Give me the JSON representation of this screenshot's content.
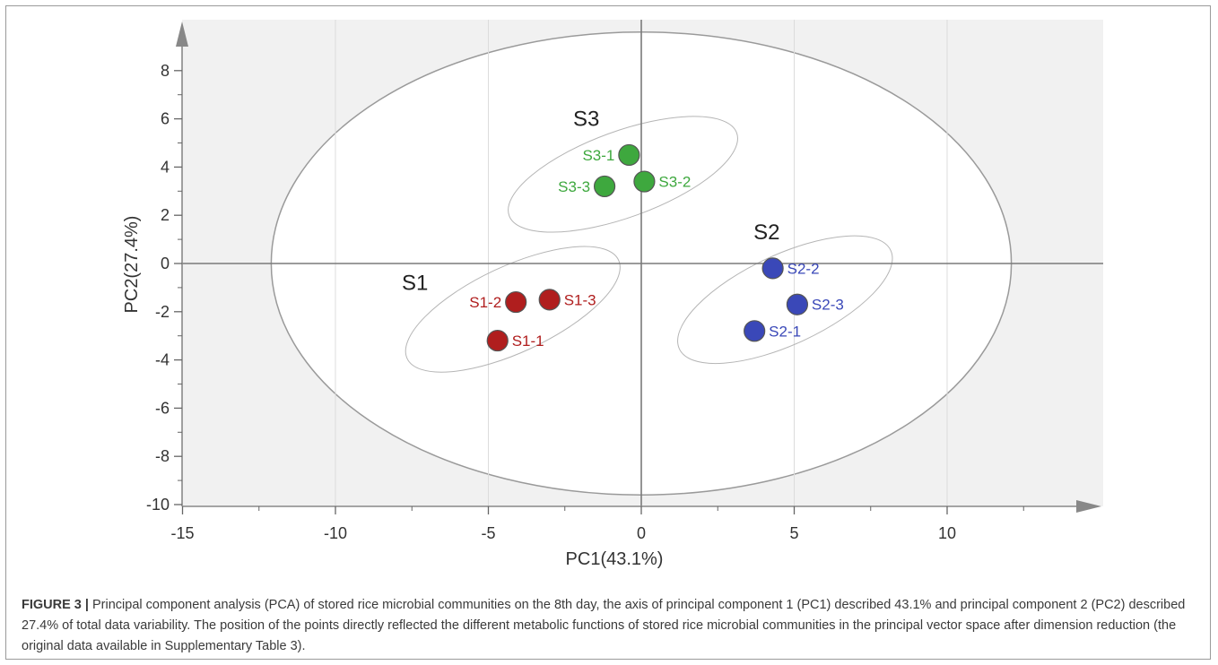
{
  "chart_data": {
    "type": "scatter",
    "title": "",
    "xlabel": "PC1(43.1%)",
    "ylabel": "PC2(27.4%)",
    "xlim": [
      -15,
      15
    ],
    "ylim": [
      -10,
      9.5
    ],
    "xticks": [
      -15,
      -10,
      -5,
      0,
      5,
      10
    ],
    "yticks": [
      -10,
      -8,
      -6,
      -4,
      -2,
      0,
      2,
      4,
      6,
      8
    ],
    "grid": true,
    "series": [
      {
        "name": "S1",
        "color": "#b01e1e",
        "points": [
          {
            "label": "S1-1",
            "x": -4.7,
            "y": -3.2
          },
          {
            "label": "S1-2",
            "x": -4.1,
            "y": -1.6
          },
          {
            "label": "S1-3",
            "x": -3.0,
            "y": -1.5
          }
        ]
      },
      {
        "name": "S2",
        "color": "#3a48b8",
        "points": [
          {
            "label": "S2-1",
            "x": 3.7,
            "y": -2.8
          },
          {
            "label": "S2-2",
            "x": 4.3,
            "y": -0.2
          },
          {
            "label": "S2-3",
            "x": 5.1,
            "y": -1.7
          }
        ]
      },
      {
        "name": "S3",
        "color": "#3ea83e",
        "points": [
          {
            "label": "S3-1",
            "x": -0.4,
            "y": 4.5
          },
          {
            "label": "S3-2",
            "x": 0.1,
            "y": 3.4
          },
          {
            "label": "S3-3",
            "x": -1.2,
            "y": 3.2
          }
        ]
      }
    ],
    "confidence_ellipse": {
      "center": [
        0,
        0
      ],
      "rx": 12.1,
      "ry": 9.6
    }
  },
  "caption": {
    "label": "FIGURE 3 |",
    "text": " Principal component analysis (PCA) of stored rice microbial communities on the 8th day, the axis of principal component 1 (PC1) described 43.1% and principal component 2 (PC2) described 27.4% of total data variability. The position of the points directly reflected the different metabolic functions of stored rice microbial communities in the principal vector space after dimension reduction (the original data available in Supplementary Table 3)."
  }
}
